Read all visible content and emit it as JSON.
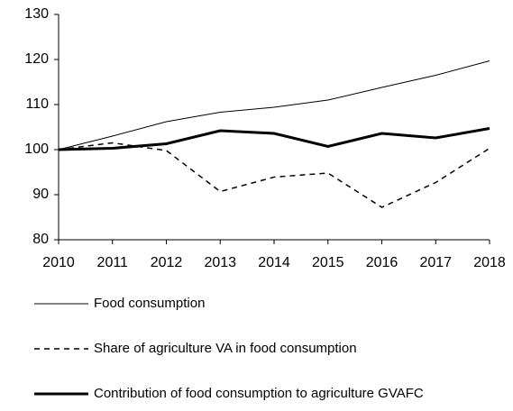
{
  "chart_data": {
    "type": "line",
    "x": [
      2010,
      2011,
      2012,
      2013,
      2014,
      2015,
      2016,
      2017,
      2018
    ],
    "series": [
      {
        "name": "Food consumption",
        "color": "#000000",
        "linestyle": "solid",
        "linewidth": 1,
        "values": [
          100,
          103,
          106.2,
          108.3,
          109.4,
          111,
          113.8,
          116.5,
          119.7
        ]
      },
      {
        "name": "Share of agriculture VA in food consumption",
        "color": "#000000",
        "linestyle": "dashed",
        "linewidth": 1.5,
        "values": [
          100,
          101.5,
          99.8,
          90.7,
          93.9,
          94.8,
          87.2,
          92.7,
          100.3
        ]
      },
      {
        "name": "Contribution of food consumption to agriculture GVAFC",
        "color": "#000000",
        "linestyle": "solid",
        "linewidth": 3,
        "values": [
          100,
          100.3,
          101.3,
          104.2,
          103.6,
          100.7,
          103.6,
          102.6,
          104.7
        ]
      }
    ],
    "xlim": [
      2010,
      2018
    ],
    "xticks": [
      2010,
      2011,
      2012,
      2013,
      2014,
      2015,
      2016,
      2017,
      2018
    ],
    "ylim": [
      80,
      130
    ],
    "yticks": [
      80,
      90,
      100,
      110,
      120,
      130
    ],
    "grid": false,
    "legend": "bottom"
  }
}
